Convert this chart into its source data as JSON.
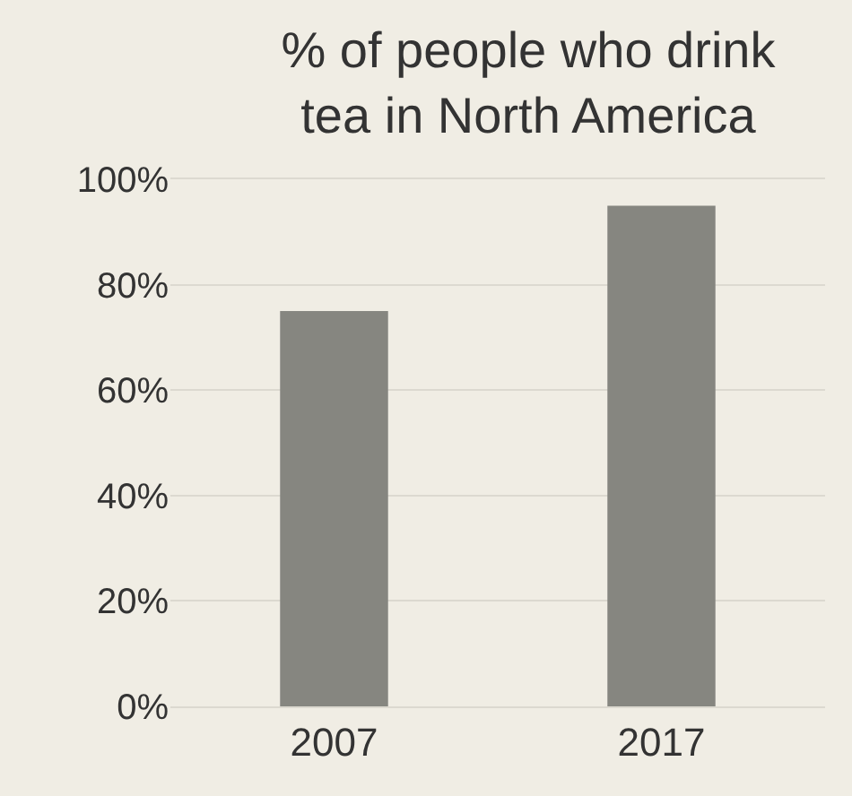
{
  "chart_data": {
    "type": "bar",
    "title": "% of people who drink\ntea in North America",
    "categories": [
      "2007",
      "2017"
    ],
    "values": [
      75,
      95
    ],
    "color": "#868680",
    "ylim": [
      0,
      100
    ],
    "yticks": [
      {
        "value": 0,
        "label": "0%"
      },
      {
        "value": 20,
        "label": "20%"
      },
      {
        "value": 40,
        "label": "40%"
      },
      {
        "value": 60,
        "label": "60%"
      },
      {
        "value": 80,
        "label": "80%"
      },
      {
        "value": 100,
        "label": "100%"
      }
    ],
    "grid": "y"
  }
}
